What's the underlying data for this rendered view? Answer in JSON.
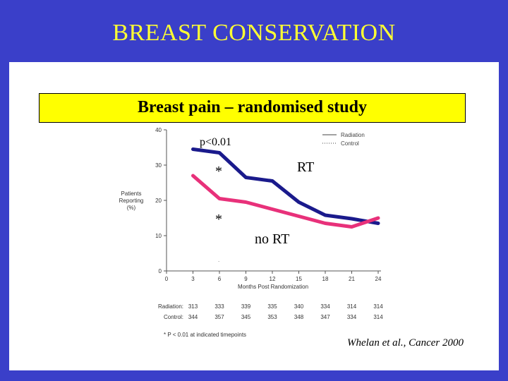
{
  "slide": {
    "title": "BREAST CONSERVATION",
    "banner": "Breast pain – randomised study",
    "citation": "Whelan et al., Cancer 2000"
  },
  "annotations": {
    "p_value": "p<0.01",
    "star1": "*",
    "star2": "*",
    "rt_label": "RT",
    "no_rt_label": "no RT"
  },
  "colors": {
    "background": "#3a3fc9",
    "title": "#ffff33",
    "banner": "#ffff00",
    "radiation": "#1a1a8c",
    "control": "#e8317a"
  },
  "chart_data": {
    "type": "line",
    "xlabel": "Months Post Randomization",
    "ylabel": "Patients Reporting (%)",
    "ylabel_lines": [
      "Patients",
      "Reporting",
      "(%)"
    ],
    "x_ticks": [
      0,
      3,
      6,
      9,
      12,
      15,
      18,
      21,
      24
    ],
    "y_ticks": [
      0,
      10,
      20,
      30,
      40
    ],
    "xlim": [
      0,
      24
    ],
    "ylim": [
      0,
      40
    ],
    "legend": {
      "position": "top-right",
      "entries": [
        "Radiation",
        "Control"
      ]
    },
    "series": [
      {
        "name": "Radiation",
        "x": [
          3,
          6,
          9,
          12,
          15,
          18,
          21,
          24
        ],
        "values": [
          34.5,
          33.5,
          26.5,
          25.5,
          19.5,
          15.8,
          14.8,
          13.5
        ]
      },
      {
        "name": "Control",
        "x": [
          3,
          6,
          9,
          12,
          15,
          18,
          21,
          24
        ],
        "values": [
          27,
          20.5,
          19.5,
          17.5,
          15.5,
          13.5,
          12.5,
          15
        ]
      }
    ],
    "table": {
      "rows": [
        {
          "label": "Radiation:",
          "values": [
            "313",
            "333",
            "339",
            "335",
            "340",
            "334",
            "314",
            "314"
          ]
        },
        {
          "label": "Control:",
          "values": [
            "344",
            "357",
            "345",
            "353",
            "348",
            "347",
            "334",
            "314"
          ]
        }
      ]
    },
    "footnote": "* P < 0.01 at indicated timepoints"
  }
}
